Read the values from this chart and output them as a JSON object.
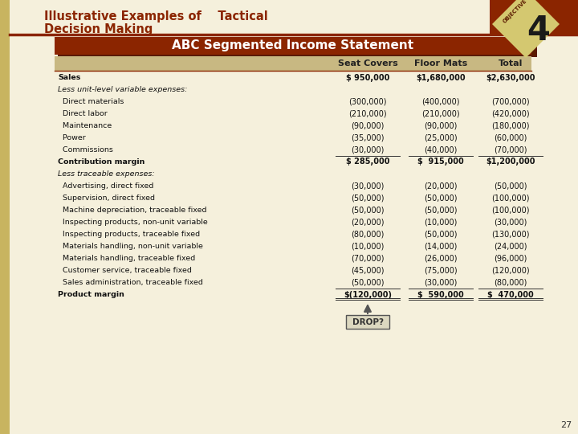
{
  "bg_color": "#f5f0dc",
  "left_bar_color": "#c8b460",
  "title_color": "#8B2500",
  "title_line1": "Illustrative Examples of    Tactical",
  "title_line2": "Decision Making",
  "title_fontsize": 10.5,
  "header_bg": "#8B2500",
  "header_shadow": "#5a1a00",
  "section_title": "ABC Segmented Income Statement",
  "section_title_fontsize": 11,
  "col_header_bg": "#c8b882",
  "col_headers": [
    "",
    "Seat Covers",
    "Floor Mats",
    "Total"
  ],
  "col_header_fontsize": 8,
  "rows": [
    [
      "Sales",
      "$ 950,000",
      "$1,680,000",
      "$2,630,000"
    ],
    [
      "Less unit-level variable expenses:",
      "",
      "",
      ""
    ],
    [
      "  Direct materials",
      "(300,000)",
      "(400,000)",
      "(700,000)"
    ],
    [
      "  Direct labor",
      "(210,000)",
      "(210,000)",
      "(420,000)"
    ],
    [
      "  Maintenance",
      "(90,000)",
      "(90,000)",
      "(180,000)"
    ],
    [
      "  Power",
      "(35,000)",
      "(25,000)",
      "(60,000)"
    ],
    [
      "  Commissions",
      "(30,000)",
      "(40,000)",
      "(70,000)"
    ],
    [
      "Contribution margin",
      "$ 285,000",
      "$  915,000",
      "$1,200,000"
    ],
    [
      "Less traceable expenses:",
      "",
      "",
      ""
    ],
    [
      "  Advertising, direct fixed",
      "(30,000)",
      "(20,000)",
      "(50,000)"
    ],
    [
      "  Supervision, direct fixed",
      "(50,000)",
      "(50,000)",
      "(100,000)"
    ],
    [
      "  Machine depreciation, traceable fixed",
      "(50,000)",
      "(50,000)",
      "(100,000)"
    ],
    [
      "  Inspecting products, non-unit variable",
      "(20,000)",
      "(10,000)",
      "(30,000)"
    ],
    [
      "  Inspecting products, traceable fixed",
      "(80,000)",
      "(50,000)",
      "(130,000)"
    ],
    [
      "  Materials handling, non-unit variable",
      "(10,000)",
      "(14,000)",
      "(24,000)"
    ],
    [
      "  Materials handling, traceable fixed",
      "(70,000)",
      "(26,000)",
      "(96,000)"
    ],
    [
      "  Customer service, traceable fixed",
      "(45,000)",
      "(75,000)",
      "(120,000)"
    ],
    [
      "  Sales administration, traceable fixed",
      "(50,000)",
      "(30,000)",
      "(80,000)"
    ],
    [
      "Product margin",
      "$(120,000)",
      "$  590,000",
      "$  470,000"
    ]
  ],
  "bold_rows": [
    0,
    7,
    18
  ],
  "italic_section_rows": [
    1,
    8
  ],
  "row_fontsize": 6.8,
  "val_fontsize": 7.0,
  "page_number": "27",
  "drop_label": "DROP?",
  "diamond_color": "#d4c870",
  "diamond_dark": "#8B2500",
  "obj_text_color": "#5a1a00",
  "corner_bar_color": "#8B2500"
}
